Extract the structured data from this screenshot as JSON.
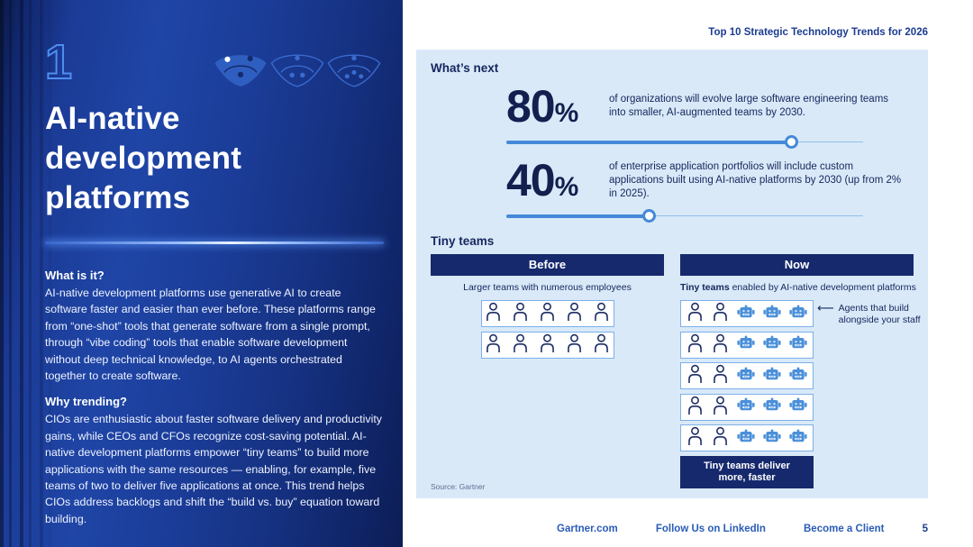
{
  "doc_header": "Top 10 Strategic Technology Trends for 2026",
  "left_panel": {
    "trend_number": "1",
    "title": "AI-native development platforms",
    "what_heading": "What is it?",
    "what_body": "AI-native development platforms use generative AI to create software faster and easier than ever before. These platforms range from “one-shot” tools that generate software from a single prompt, through “vibe coding” tools that enable software development without deep technical knowledge, to AI agents orchestrated together to create software.",
    "why_heading": "Why trending?",
    "why_body": "CIOs are enthusiastic about faster software delivery and productivity gains, while CEOs and CFOs recognize cost-saving potential. AI-native development platforms empower “tiny teams” to build more applications with the same resources — enabling, for example, five teams of two to deliver five applications at once. This trend helps CIOs address backlogs and shift the “build vs. buy” equation toward building.",
    "icons": [
      "fan-icon-filled",
      "fan-icon-outline-3-dots",
      "fan-icon-outline-4-dots"
    ]
  },
  "whats_next": {
    "heading": "What’s next",
    "stats": [
      {
        "value": "80",
        "unit": "%",
        "description": "of organizations will evolve large software engineering teams into smaller, AI-augmented teams by 2030.",
        "slider_percent": 80
      },
      {
        "value": "40",
        "unit": "%",
        "description": "of enterprise application portfolios will include custom applications built using AI-native platforms by 2030 (up from 2% in 2025).",
        "slider_percent": 40
      }
    ]
  },
  "tiny_teams": {
    "heading": "Tiny teams",
    "before": {
      "header": "Before",
      "caption": "Larger teams with numerous employees",
      "rows": 2,
      "people_per_row": 5,
      "robots_per_row": 0
    },
    "now": {
      "header": "Now",
      "caption_bold": "Tiny teams",
      "caption_rest": " enabled by AI-native development platforms",
      "rows": 5,
      "people_per_row": 2,
      "robots_per_row": 3,
      "annotation": "Agents that build alongside your staff",
      "badge": "Tiny teams deliver more, faster"
    }
  },
  "source": "Source: Gartner",
  "footer": {
    "links": [
      "Gartner.com",
      "Follow Us on LinkedIn",
      "Become a Client"
    ],
    "page": "5"
  },
  "colors": {
    "navy": "#16296d",
    "panel_blue_bright": "#1f45a6",
    "light_panel": "#d9e9f8",
    "slider_blue": "#4589d8",
    "robot_blue": "#4a8fd9",
    "person_navy": "#1d2d66",
    "link_blue": "#2a5cb8",
    "text_navy": "#14265c",
    "outline_number_blue": "#4f8ef2"
  }
}
